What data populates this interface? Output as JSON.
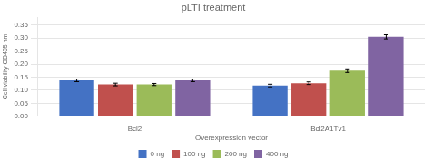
{
  "chart_data": {
    "type": "bar",
    "title": "pLTI treatment",
    "xlabel": "Overexpression vector",
    "ylabel": "Cell viability OD405 nm",
    "categories": [
      "Bcl2",
      "Bcl2A1Tv1"
    ],
    "series": [
      {
        "name": "0 ng",
        "color": "#4472C4",
        "values": [
          0.138,
          0.118
        ],
        "errors": [
          0.005,
          0.005
        ]
      },
      {
        "name": "100 ng",
        "color": "#C0504D",
        "values": [
          0.122,
          0.127
        ],
        "errors": [
          0.005,
          0.005
        ]
      },
      {
        "name": "200 ng",
        "color": "#9BBB59",
        "values": [
          0.122,
          0.175
        ],
        "errors": [
          0.004,
          0.007
        ]
      },
      {
        "name": "400 ng",
        "color": "#8064A2",
        "values": [
          0.138,
          0.305
        ],
        "errors": [
          0.005,
          0.008
        ]
      }
    ],
    "ylim": [
      0,
      0.38
    ],
    "yticks": [
      {
        "value": 0,
        "label": "0.00"
      },
      0.05,
      {
        "value": 0.1,
        "label": "0.10"
      },
      0.15,
      {
        "value": 0.2,
        "label": "0.20"
      },
      0.25,
      {
        "value": 0.3,
        "label": "0.30"
      },
      0.35
    ],
    "grid": true,
    "legend": "bottom"
  }
}
